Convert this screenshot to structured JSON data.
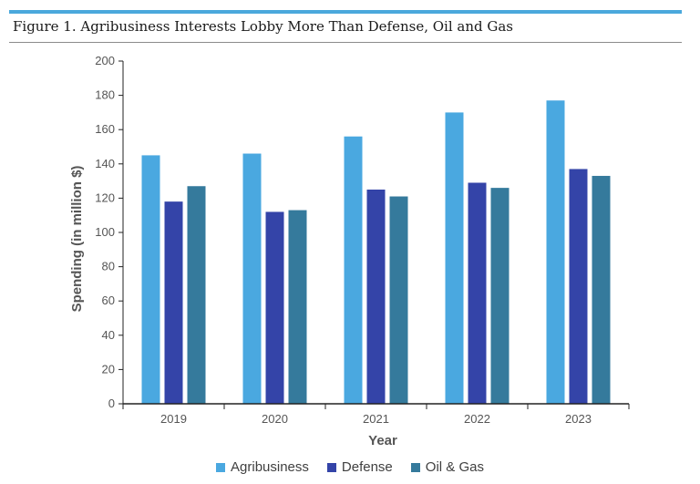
{
  "figure": {
    "title": "Figure 1. Agribusiness Interests Lobby More Than Defense, Oil and Gas",
    "accent_color": "#4aa8dc"
  },
  "chart_data": {
    "type": "bar",
    "categories": [
      "2019",
      "2020",
      "2021",
      "2022",
      "2023"
    ],
    "series": [
      {
        "name": "Agribusiness",
        "color": "#4aa8e0",
        "values": [
          145,
          146,
          156,
          170,
          177
        ]
      },
      {
        "name": "Defense",
        "color": "#3444a8",
        "values": [
          118,
          112,
          125,
          129,
          137
        ]
      },
      {
        "name": "Oil & Gas",
        "color": "#357a9c",
        "values": [
          127,
          113,
          121,
          126,
          133
        ]
      }
    ],
    "xlabel": "Year",
    "ylabel": "Spending (in million $)",
    "ylim": [
      0,
      200
    ],
    "yticks": [
      "0",
      "20",
      "40",
      "60",
      "80",
      "100",
      "120",
      "140",
      "160",
      "180",
      "200"
    ],
    "grid": false,
    "legend_position": "bottom"
  }
}
